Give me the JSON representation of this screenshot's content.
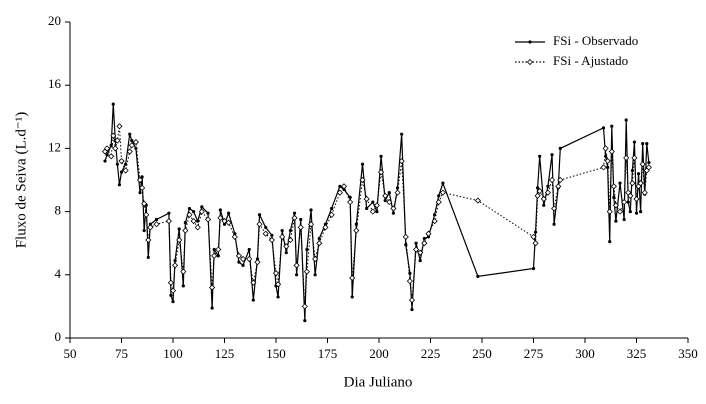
{
  "chart_data": {
    "type": "line",
    "x_label": "Dia Juliano",
    "y_label": "Fluxo de Seiva (L.d⁻¹)",
    "x": [
      67,
      68,
      70,
      71,
      72,
      73,
      74,
      75,
      77,
      79,
      80,
      82,
      84,
      85,
      86,
      87,
      88,
      89,
      92,
      98,
      99,
      100,
      101,
      103,
      105,
      106,
      108,
      110,
      112,
      114,
      117,
      119,
      120,
      122,
      123,
      125,
      127,
      130,
      132,
      134,
      137,
      139,
      141,
      142,
      145,
      148,
      150,
      151,
      153,
      155,
      157,
      159,
      160,
      162,
      164,
      165,
      167,
      169,
      171,
      174,
      177,
      181,
      183,
      186,
      187,
      189,
      192,
      194,
      197,
      199,
      201,
      203,
      205,
      207,
      209,
      211,
      213,
      215,
      216,
      218,
      220,
      222,
      224,
      227,
      229,
      231,
      248,
      275,
      276,
      277,
      278,
      280,
      282,
      284,
      285,
      287,
      288,
      309,
      310,
      311,
      312,
      313,
      314,
      315,
      317,
      319,
      320,
      321,
      322,
      323,
      324,
      325,
      326,
      327,
      328,
      329,
      330,
      331
    ],
    "series": [
      {
        "name": "FSi - Observado",
        "color": "#000000",
        "linestyle": "solid",
        "marker": "dot",
        "values": [
          11.2,
          11.6,
          12.2,
          14.8,
          12.5,
          11.0,
          9.7,
          10.5,
          11.0,
          12.9,
          12.5,
          12.0,
          9.2,
          10.2,
          6.8,
          8.4,
          5.1,
          7.2,
          7.5,
          7.9,
          2.7,
          2.3,
          4.9,
          6.9,
          3.3,
          7.3,
          8.2,
          8.0,
          7.4,
          8.3,
          7.9,
          1.9,
          5.6,
          5.2,
          8.1,
          7.2,
          7.9,
          6.6,
          4.8,
          4.6,
          5.6,
          2.4,
          5.0,
          7.8,
          7.0,
          6.5,
          3.3,
          2.6,
          6.8,
          5.4,
          6.8,
          7.9,
          4.0,
          7.5,
          1.1,
          5.6,
          8.1,
          4.0,
          6.3,
          7.2,
          8.2,
          9.6,
          9.4,
          8.9,
          2.6,
          7.2,
          11.0,
          8.2,
          8.6,
          8.0,
          11.5,
          8.7,
          9.2,
          7.9,
          9.5,
          12.9,
          5.9,
          4.1,
          1.8,
          6.0,
          4.9,
          6.3,
          6.4,
          7.8,
          9.0,
          9.8,
          3.9,
          4.4,
          6.7,
          9.5,
          11.5,
          8.4,
          9.6,
          11.6,
          7.2,
          9.5,
          12.0,
          13.3,
          11.5,
          10.8,
          6.1,
          13.4,
          8.9,
          7.4,
          9.8,
          7.5,
          13.8,
          8.6,
          8.0,
          10.6,
          12.4,
          7.9,
          10.4,
          8.0,
          12.3,
          9.1,
          12.3,
          11.1
        ]
      },
      {
        "name": "FSi - Ajustado",
        "color": "#000000",
        "linestyle": "dotted",
        "marker": "diamond",
        "values": [
          11.8,
          12.0,
          11.5,
          12.8,
          12.0,
          12.5,
          13.4,
          11.2,
          10.6,
          11.8,
          12.2,
          12.4,
          10.0,
          9.5,
          8.5,
          7.8,
          6.2,
          7.0,
          7.2,
          7.4,
          3.5,
          3.0,
          4.6,
          6.2,
          4.2,
          6.8,
          7.8,
          7.4,
          7.0,
          8.0,
          7.5,
          3.2,
          5.2,
          5.6,
          7.6,
          7.4,
          7.3,
          6.4,
          5.2,
          5.0,
          5.0,
          3.5,
          4.8,
          7.2,
          6.6,
          6.2,
          4.1,
          3.4,
          6.4,
          5.8,
          6.2,
          7.6,
          4.6,
          7.0,
          2.0,
          4.2,
          7.2,
          5.0,
          6.0,
          7.0,
          7.8,
          9.2,
          9.6,
          8.6,
          3.8,
          6.8,
          10.0,
          8.8,
          8.0,
          8.4,
          10.5,
          9.0,
          8.6,
          8.2,
          9.2,
          11.2,
          6.4,
          3.6,
          2.4,
          5.6,
          5.4,
          6.0,
          6.6,
          7.4,
          8.6,
          9.2,
          8.7,
          6.4,
          6.0,
          9.0,
          9.3,
          8.8,
          9.2,
          10.0,
          8.2,
          9.6,
          10.0,
          10.8,
          12.0,
          11.2,
          8.0,
          11.8,
          9.6,
          8.4,
          8.0,
          8.6,
          11.4,
          9.2,
          9.0,
          9.8,
          11.4,
          8.8,
          9.6,
          9.8,
          11.0,
          9.2,
          10.6,
          10.8
        ]
      }
    ],
    "xlim": [
      50,
      350
    ],
    "xticks": [
      50,
      75,
      100,
      125,
      150,
      175,
      200,
      225,
      250,
      275,
      300,
      325,
      350
    ],
    "ylim": [
      0,
      20
    ],
    "yticks": [
      0,
      4,
      8,
      12,
      16,
      20
    ],
    "legend": "upper right"
  }
}
